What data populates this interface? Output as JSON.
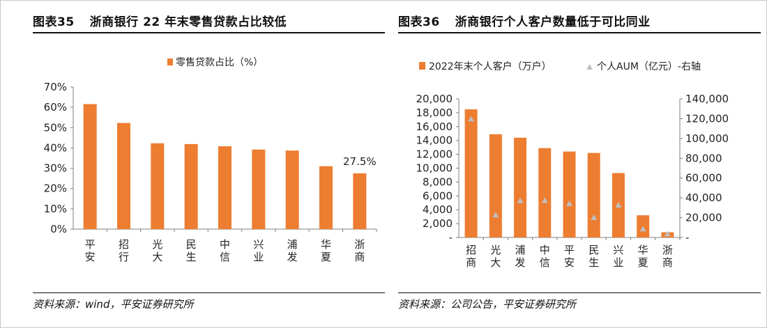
{
  "colors": {
    "bar": "#ED7D31",
    "marker": "#BFBFBF",
    "axis": "#7f7f7f"
  },
  "left": {
    "title_num": "图表35",
    "title_text": "浙商银行 22 年末零售贷款占比较低",
    "source": "资料来源：wind，平安证券研究所"
  },
  "right": {
    "title_num": "图表36",
    "title_text": "浙商银行个人客户数量低于可比同业",
    "source": "资料来源：公司公告，平安证券研究所"
  },
  "chart_data": [
    {
      "type": "bar",
      "legend": [
        "零售贷款占比（%）"
      ],
      "categories": [
        "平安",
        "招行",
        "光大",
        "民生",
        "中信",
        "兴业",
        "浦发",
        "华夏",
        "浙商"
      ],
      "series": [
        {
          "name": "零售贷款占比（%）",
          "values": [
            61.6,
            52.3,
            42.3,
            41.9,
            40.8,
            39.2,
            38.7,
            31.0,
            27.5
          ]
        }
      ],
      "data_labels": [
        {
          "index": 8,
          "text": "27.5%"
        }
      ],
      "y_ticks": [
        "0%",
        "10%",
        "20%",
        "30%",
        "40%",
        "50%",
        "60%",
        "70%"
      ],
      "ylim": [
        0,
        70
      ],
      "grid": false,
      "legend_position": "top"
    },
    {
      "type": "bar",
      "legend": [
        "2022年末个人客户（万户）",
        "个人AUM（亿元）-右轴"
      ],
      "categories": [
        "招商",
        "光大",
        "浦发",
        "中信",
        "平安",
        "民生",
        "兴业",
        "华夏",
        "浙商"
      ],
      "series": [
        {
          "name": "2022年末个人客户（万户）",
          "axis": "left",
          "type": "bar",
          "values": [
            18500,
            14900,
            14400,
            12900,
            12400,
            12200,
            9300,
            3200,
            750
          ]
        },
        {
          "name": "个人AUM（亿元）-右轴",
          "axis": "right",
          "type": "scatter",
          "values": [
            120000,
            23000,
            37500,
            37700,
            34500,
            20500,
            33000,
            9000,
            4000
          ]
        }
      ],
      "y_left_ticks": [
        "-",
        "2,000",
        "4,000",
        "6,000",
        "8,000",
        "10,000",
        "12,000",
        "14,000",
        "16,000",
        "18,000",
        "20,000"
      ],
      "y_right_ticks": [
        "-",
        "20,000",
        "40,000",
        "60,000",
        "80,000",
        "100,000",
        "120,000",
        "140,000"
      ],
      "ylim_left": [
        0,
        20000
      ],
      "ylim_right": [
        0,
        140000
      ],
      "grid": false,
      "legend_position": "top"
    }
  ]
}
